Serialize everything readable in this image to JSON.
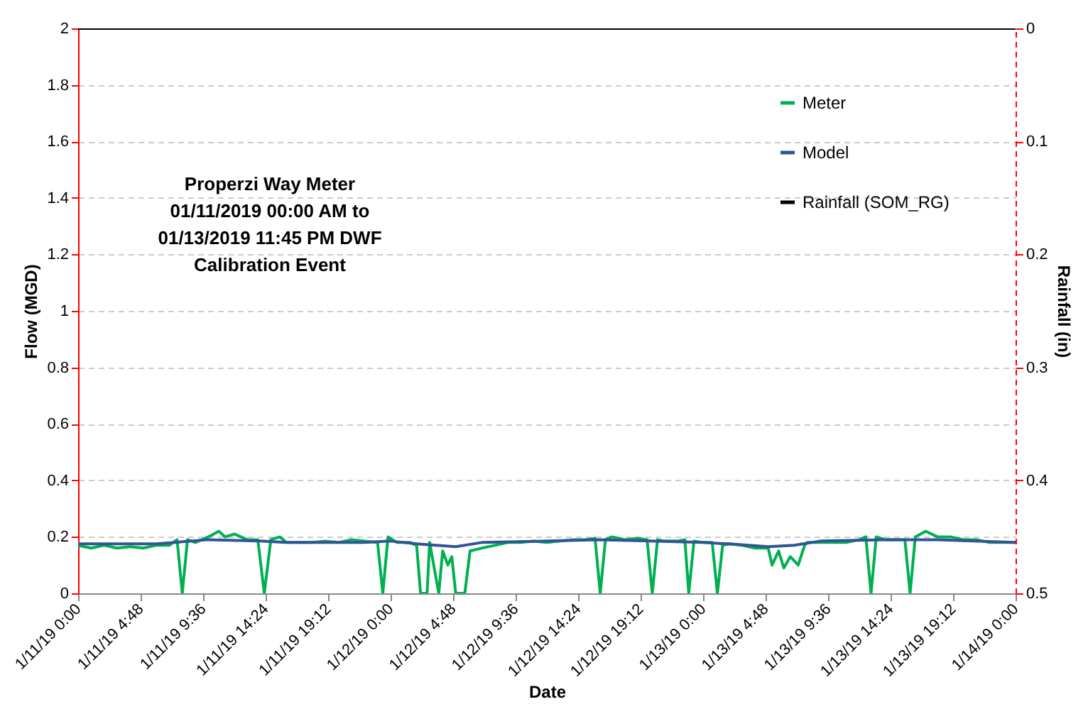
{
  "chart_data": {
    "type": "line",
    "title": "Properzi Way Meter 01/11/2019 00:00 AM to 01/13/2019 11:45 PM DWF Calibration Event",
    "xlabel": "Date",
    "ylabel": "Flow (MGD)",
    "y2label": "Rainfall (in)",
    "xlim": [
      "2019-01-11T00:00",
      "2019-01-14T00:00"
    ],
    "xticks": [
      {
        "value": "2019-01-11T00:00",
        "label": "1/11/19 0:00"
      },
      {
        "value": "2019-01-11T04:48",
        "label": "1/11/19 4:48"
      },
      {
        "value": "2019-01-11T09:36",
        "label": "1/11/19 9:36"
      },
      {
        "value": "2019-01-11T14:24",
        "label": "1/11/19 14:24"
      },
      {
        "value": "2019-01-11T19:12",
        "label": "1/11/19 19:12"
      },
      {
        "value": "2019-01-12T00:00",
        "label": "1/12/19 0:00"
      },
      {
        "value": "2019-01-12T04:48",
        "label": "1/12/19 4:48"
      },
      {
        "value": "2019-01-12T09:36",
        "label": "1/12/19 9:36"
      },
      {
        "value": "2019-01-12T14:24",
        "label": "1/12/19 14:24"
      },
      {
        "value": "2019-01-12T19:12",
        "label": "1/12/19 19:12"
      },
      {
        "value": "2019-01-13T00:00",
        "label": "1/13/19 0:00"
      },
      {
        "value": "2019-01-13T04:48",
        "label": "1/13/19 4:48"
      },
      {
        "value": "2019-01-13T09:36",
        "label": "1/13/19 9:36"
      },
      {
        "value": "2019-01-13T14:24",
        "label": "1/13/19 14:24"
      },
      {
        "value": "2019-01-13T19:12",
        "label": "1/13/19 19:12"
      },
      {
        "value": "2019-01-14T00:00",
        "label": "1/14/19 0:00"
      }
    ],
    "ylim": [
      0,
      2
    ],
    "yticks": [
      0,
      0.2,
      0.4,
      0.6,
      0.8,
      1,
      1.2,
      1.4,
      1.6,
      1.8,
      2
    ],
    "y2lim": [
      0.5,
      0
    ],
    "y2ticks": [
      0,
      0.1,
      0.2,
      0.3,
      0.4,
      0.5
    ],
    "grid": "y",
    "legend": "top right",
    "line_style": "solid",
    "series": [
      {
        "name": "Meter",
        "color": "#00b050",
        "x": [
          "2019-01-11T00:00",
          "2019-01-11T01:00",
          "2019-01-11T02:00",
          "2019-01-11T03:00",
          "2019-01-11T04:00",
          "2019-01-11T05:00",
          "2019-01-11T06:00",
          "2019-01-11T07:00",
          "2019-01-11T07:36",
          "2019-01-11T08:00",
          "2019-01-11T08:24",
          "2019-01-11T09:00",
          "2019-01-11T10:00",
          "2019-01-11T10:48",
          "2019-01-11T11:18",
          "2019-01-11T12:00",
          "2019-01-11T13:00",
          "2019-01-11T13:48",
          "2019-01-11T14:18",
          "2019-01-11T14:48",
          "2019-01-11T15:30",
          "2019-01-11T16:00",
          "2019-01-11T17:00",
          "2019-01-11T18:00",
          "2019-01-11T19:00",
          "2019-01-11T20:00",
          "2019-01-11T21:00",
          "2019-01-11T22:00",
          "2019-01-11T23:00",
          "2019-01-11T23:24",
          "2019-01-11T23:48",
          "2019-01-12T00:30",
          "2019-01-12T01:30",
          "2019-01-12T02:00",
          "2019-01-12T02:18",
          "2019-01-12T02:48",
          "2019-01-12T03:00",
          "2019-01-12T03:42",
          "2019-01-12T04:00",
          "2019-01-12T04:24",
          "2019-01-12T04:42",
          "2019-01-12T05:00",
          "2019-01-12T05:42",
          "2019-01-12T06:06",
          "2019-01-12T07:00",
          "2019-01-12T08:00",
          "2019-01-12T09:00",
          "2019-01-12T10:00",
          "2019-01-12T11:00",
          "2019-01-12T12:00",
          "2019-01-12T13:00",
          "2019-01-12T14:00",
          "2019-01-12T15:00",
          "2019-01-12T15:42",
          "2019-01-12T16:06",
          "2019-01-12T16:30",
          "2019-01-12T17:00",
          "2019-01-12T18:00",
          "2019-01-12T19:00",
          "2019-01-12T19:42",
          "2019-01-12T20:06",
          "2019-01-12T20:30",
          "2019-01-12T21:00",
          "2019-01-12T22:00",
          "2019-01-12T22:36",
          "2019-01-12T22:54",
          "2019-01-12T23:18",
          "2019-01-13T00:00",
          "2019-01-13T00:42",
          "2019-01-13T01:06",
          "2019-01-13T01:30",
          "2019-01-13T02:00",
          "2019-01-13T03:00",
          "2019-01-13T04:00",
          "2019-01-13T05:00",
          "2019-01-13T05:18",
          "2019-01-13T05:48",
          "2019-01-13T06:12",
          "2019-01-13T06:42",
          "2019-01-13T07:18",
          "2019-01-13T07:48",
          "2019-01-13T08:00",
          "2019-01-13T09:00",
          "2019-01-13T10:00",
          "2019-01-13T11:00",
          "2019-01-13T12:00",
          "2019-01-13T12:30",
          "2019-01-13T12:54",
          "2019-01-13T13:18",
          "2019-01-13T14:00",
          "2019-01-13T15:00",
          "2019-01-13T15:30",
          "2019-01-13T15:54",
          "2019-01-13T16:18",
          "2019-01-13T17:06",
          "2019-01-13T18:00",
          "2019-01-13T19:00",
          "2019-01-13T20:00",
          "2019-01-13T21:00",
          "2019-01-13T22:00",
          "2019-01-13T23:00",
          "2019-01-14T00:00"
        ],
        "values": [
          0.17,
          0.16,
          0.17,
          0.16,
          0.165,
          0.16,
          0.17,
          0.17,
          0.19,
          0,
          0.19,
          0.18,
          0.2,
          0.22,
          0.2,
          0.21,
          0.19,
          0.19,
          0,
          0.19,
          0.2,
          0.18,
          0.18,
          0.18,
          0.185,
          0.18,
          0.19,
          0.185,
          0.18,
          0,
          0.2,
          0.18,
          0.18,
          0.17,
          0,
          0,
          0.18,
          0,
          0.15,
          0.1,
          0.13,
          0,
          0,
          0.15,
          0.16,
          0.17,
          0.18,
          0.18,
          0.185,
          0.18,
          0.185,
          0.19,
          0.19,
          0.195,
          0,
          0.19,
          0.2,
          0.19,
          0.195,
          0.19,
          0,
          0.19,
          0.185,
          0.185,
          0.19,
          0,
          0.185,
          0.18,
          0.18,
          0,
          0.17,
          0.175,
          0.17,
          0.16,
          0.16,
          0.1,
          0.15,
          0.09,
          0.13,
          0.1,
          0.17,
          0.18,
          0.18,
          0.18,
          0.18,
          0.19,
          0.2,
          0,
          0.2,
          0.19,
          0.19,
          0.19,
          0,
          0.2,
          0.22,
          0.2,
          0.2,
          0.19,
          0.19,
          0.18,
          0.18,
          0.18
        ]
      },
      {
        "name": "Model",
        "color": "#2f5597",
        "x": [
          "2019-01-11T00:00",
          "2019-01-11T06:00",
          "2019-01-11T10:00",
          "2019-01-11T14:00",
          "2019-01-11T16:00",
          "2019-01-11T18:00",
          "2019-01-11T22:00",
          "2019-01-12T00:00",
          "2019-01-12T02:00",
          "2019-01-12T05:00",
          "2019-01-12T07:00",
          "2019-01-12T12:00",
          "2019-01-12T16:00",
          "2019-01-12T20:00",
          "2019-01-13T00:00",
          "2019-01-13T02:00",
          "2019-01-13T05:00",
          "2019-01-13T07:00",
          "2019-01-13T09:00",
          "2019-01-13T14:00",
          "2019-01-13T18:00",
          "2019-01-14T00:00"
        ],
        "values": [
          0.175,
          0.175,
          0.19,
          0.185,
          0.18,
          0.18,
          0.18,
          0.185,
          0.175,
          0.165,
          0.18,
          0.185,
          0.19,
          0.185,
          0.18,
          0.175,
          0.165,
          0.17,
          0.185,
          0.19,
          0.19,
          0.18
        ]
      },
      {
        "name": "Rainfall (SOM_RG)",
        "color": "#000000",
        "axis": "y2",
        "x": [
          "2019-01-11T00:00",
          "2019-01-14T00:00"
        ],
        "values": [
          0,
          0
        ]
      }
    ]
  }
}
